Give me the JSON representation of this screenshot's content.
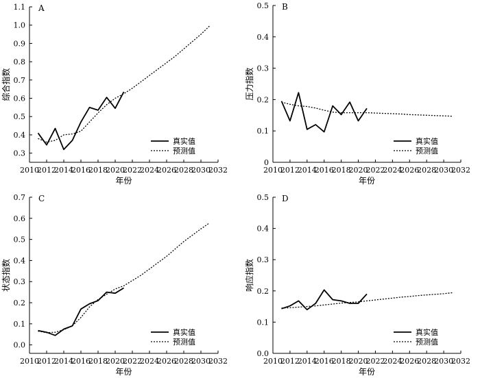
{
  "chart_data": [
    {
      "type": "line",
      "panel": "A",
      "ylabel": "综合指数",
      "xlabel": "年份",
      "xlim": [
        2010,
        2032
      ],
      "ylim": [
        0.25,
        1.1
      ],
      "xticks": [
        2010,
        2012,
        2014,
        2016,
        2018,
        2020,
        2022,
        2024,
        2026,
        2028,
        2030,
        2032
      ],
      "yticks": [
        "0.3",
        "0.4",
        "0.5",
        "0.6",
        "0.7",
        "0.8",
        "0.9",
        "1.0",
        "1.1"
      ],
      "legend_position": "lower-right",
      "series": [
        {
          "name": "真实值",
          "style": "solid",
          "x": [
            2011,
            2012,
            2013,
            2014,
            2015,
            2016,
            2017,
            2018,
            2019,
            2020,
            2021
          ],
          "y": [
            0.41,
            0.345,
            0.435,
            0.32,
            0.37,
            0.47,
            0.55,
            0.535,
            0.605,
            0.545,
            0.635
          ]
        },
        {
          "name": "预测值",
          "style": "dotted",
          "x": [
            2011,
            2012,
            2013,
            2014,
            2015,
            2016,
            2017,
            2018,
            2019,
            2020,
            2021,
            2022,
            2023,
            2024,
            2025,
            2026,
            2027,
            2028,
            2029,
            2030,
            2031
          ],
          "y": [
            0.38,
            0.36,
            0.37,
            0.4,
            0.405,
            0.42,
            0.47,
            0.52,
            0.565,
            0.6,
            0.625,
            0.655,
            0.69,
            0.725,
            0.76,
            0.795,
            0.83,
            0.87,
            0.91,
            0.95,
            0.995
          ]
        }
      ]
    },
    {
      "type": "line",
      "panel": "B",
      "ylabel": "压力指数",
      "xlabel": "年份",
      "xlim": [
        2010,
        2032
      ],
      "ylim": [
        0,
        0.5
      ],
      "xticks": [
        2010,
        2012,
        2014,
        2016,
        2018,
        2020,
        2022,
        2024,
        2026,
        2028,
        2030,
        2032
      ],
      "yticks": [
        "0",
        "0.1",
        "0.2",
        "0.3",
        "0.4",
        "0.5"
      ],
      "legend_position": "lower-right",
      "series": [
        {
          "name": "真实值",
          "style": "solid",
          "x": [
            2011,
            2012,
            2013,
            2014,
            2015,
            2016,
            2017,
            2018,
            2019,
            2020,
            2021
          ],
          "y": [
            0.195,
            0.132,
            0.222,
            0.105,
            0.12,
            0.097,
            0.18,
            0.152,
            0.192,
            0.132,
            0.172
          ]
        },
        {
          "name": "预测值",
          "style": "dotted",
          "x": [
            2011,
            2012,
            2013,
            2014,
            2015,
            2016,
            2017,
            2018,
            2019,
            2020,
            2021,
            2022,
            2023,
            2024,
            2025,
            2026,
            2027,
            2028,
            2029,
            2030,
            2031
          ],
          "y": [
            0.192,
            0.185,
            0.18,
            0.178,
            0.173,
            0.166,
            0.16,
            0.158,
            0.158,
            0.158,
            0.158,
            0.157,
            0.156,
            0.155,
            0.154,
            0.152,
            0.151,
            0.15,
            0.149,
            0.148,
            0.147
          ]
        }
      ]
    },
    {
      "type": "line",
      "panel": "C",
      "ylabel": "状态指数",
      "xlabel": "年份",
      "xlim": [
        2010,
        2032
      ],
      "ylim": [
        -0.04,
        0.7
      ],
      "xticks": [
        2010,
        2012,
        2014,
        2016,
        2018,
        2020,
        2022,
        2024,
        2026,
        2028,
        2030,
        2032
      ],
      "yticks": [
        "0.0",
        "0.1",
        "0.2",
        "0.3",
        "0.4",
        "0.5",
        "0.6",
        "0.7"
      ],
      "legend_position": "lower-right",
      "series": [
        {
          "name": "真实值",
          "style": "solid",
          "x": [
            2011,
            2012,
            2013,
            2014,
            2015,
            2016,
            2017,
            2018,
            2019,
            2020,
            2021
          ],
          "y": [
            0.068,
            0.06,
            0.045,
            0.075,
            0.09,
            0.17,
            0.195,
            0.21,
            0.25,
            0.245,
            0.27
          ]
        },
        {
          "name": "预测值",
          "style": "dotted",
          "x": [
            2011,
            2012,
            2013,
            2014,
            2015,
            2016,
            2017,
            2018,
            2019,
            2020,
            2021,
            2022,
            2023,
            2024,
            2025,
            2026,
            2027,
            2028,
            2029,
            2030,
            2031
          ],
          "y": [
            0.065,
            0.058,
            0.06,
            0.072,
            0.09,
            0.13,
            0.18,
            0.215,
            0.24,
            0.265,
            0.28,
            0.305,
            0.33,
            0.36,
            0.39,
            0.42,
            0.455,
            0.49,
            0.52,
            0.55,
            0.578
          ]
        }
      ]
    },
    {
      "type": "line",
      "panel": "D",
      "ylabel": "响应指数",
      "xlabel": "年份",
      "xlim": [
        2010,
        2032
      ],
      "ylim": [
        0,
        0.5
      ],
      "xticks": [
        2010,
        2012,
        2014,
        2016,
        2018,
        2020,
        2022,
        2024,
        2026,
        2028,
        2030,
        2032
      ],
      "yticks": [
        "0.0",
        "0.1",
        "0.2",
        "0.3",
        "0.4",
        "0.5"
      ],
      "legend_position": "lower-right",
      "series": [
        {
          "name": "真实值",
          "style": "solid",
          "x": [
            2011,
            2012,
            2013,
            2014,
            2015,
            2016,
            2017,
            2018,
            2019,
            2020,
            2021
          ],
          "y": [
            0.143,
            0.152,
            0.168,
            0.14,
            0.16,
            0.203,
            0.172,
            0.168,
            0.16,
            0.16,
            0.19
          ]
        },
        {
          "name": "预测值",
          "style": "dotted",
          "x": [
            2011,
            2012,
            2013,
            2014,
            2015,
            2016,
            2017,
            2018,
            2019,
            2020,
            2021,
            2022,
            2023,
            2024,
            2025,
            2026,
            2027,
            2028,
            2029,
            2030,
            2031
          ],
          "y": [
            0.145,
            0.146,
            0.148,
            0.15,
            0.152,
            0.155,
            0.158,
            0.161,
            0.163,
            0.165,
            0.168,
            0.171,
            0.174,
            0.177,
            0.18,
            0.182,
            0.185,
            0.187,
            0.189,
            0.191,
            0.194
          ]
        }
      ]
    }
  ]
}
